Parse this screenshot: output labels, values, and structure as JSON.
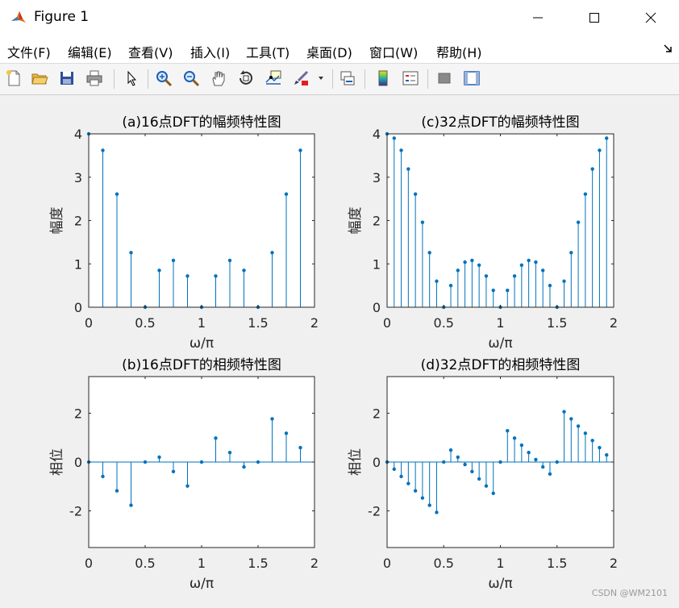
{
  "window": {
    "title": "Figure 1",
    "minimize_icon": "minimize-icon",
    "maximize_icon": "maximize-icon",
    "close_icon": "close-icon"
  },
  "menu": {
    "items": [
      {
        "label": "文件(F)"
      },
      {
        "label": "编辑(E)"
      },
      {
        "label": "查看(V)"
      },
      {
        "label": "插入(I)"
      },
      {
        "label": "工具(T)"
      },
      {
        "label": "桌面(D)"
      },
      {
        "label": "窗口(W)"
      },
      {
        "label": "帮助(H)"
      }
    ]
  },
  "toolbar": {
    "icons": [
      "new-figure-icon",
      "open-file-icon",
      "save-icon",
      "print-icon",
      "pointer-icon",
      "zoom-in-icon",
      "zoom-out-icon",
      "pan-icon",
      "rotate-3d-icon",
      "data-cursor-icon",
      "brush-icon",
      "link-plot-icon",
      "colorbar-icon",
      "legend-icon",
      "hide-plot-tools-icon",
      "show-plot-tools-icon"
    ]
  },
  "watermark": "CSDN @WM2101",
  "colors": {
    "stem": "#0072bd",
    "axes_bg": "#ffffff",
    "axes_border": "#262626"
  },
  "chart_data": [
    {
      "type": "stem",
      "title": "(a)16点DFT的幅频特性图",
      "xlabel": "ω/π",
      "ylabel": "幅度",
      "xlim": [
        0,
        2
      ],
      "ylim": [
        0,
        4
      ],
      "xticks": [
        "0",
        "0.5",
        "1",
        "1.5",
        "2"
      ],
      "yticks": [
        "0",
        "1",
        "2",
        "3",
        "4"
      ],
      "x": [
        0,
        0.125,
        0.25,
        0.375,
        0.5,
        0.625,
        0.75,
        0.875,
        1,
        1.125,
        1.25,
        1.375,
        1.5,
        1.625,
        1.75,
        1.875
      ],
      "values": [
        4,
        3.62,
        2.61,
        1.26,
        0,
        0.85,
        1.08,
        0.72,
        0,
        0.72,
        1.08,
        0.85,
        0,
        1.26,
        2.61,
        3.62
      ]
    },
    {
      "type": "stem",
      "title": "(c)32点DFT的幅频特性图",
      "xlabel": "ω/π",
      "ylabel": "幅度",
      "xlim": [
        0,
        2
      ],
      "ylim": [
        0,
        4
      ],
      "xticks": [
        "0",
        "0.5",
        "1",
        "1.5",
        "2"
      ],
      "yticks": [
        "0",
        "1",
        "2",
        "3",
        "4"
      ],
      "x": [
        0,
        0.0625,
        0.125,
        0.1875,
        0.25,
        0.3125,
        0.375,
        0.4375,
        0.5,
        0.5625,
        0.625,
        0.6875,
        0.75,
        0.8125,
        0.875,
        0.9375,
        1,
        1.0625,
        1.125,
        1.1875,
        1.25,
        1.3125,
        1.375,
        1.4375,
        1.5,
        1.5625,
        1.625,
        1.6875,
        1.75,
        1.8125,
        1.875,
        1.9375
      ],
      "values": [
        4,
        3.9,
        3.62,
        3.19,
        2.61,
        1.96,
        1.26,
        0.6,
        0,
        0.5,
        0.85,
        1.04,
        1.08,
        0.97,
        0.72,
        0.39,
        0,
        0.39,
        0.72,
        0.97,
        1.08,
        1.04,
        0.85,
        0.5,
        0,
        0.6,
        1.26,
        1.96,
        2.61,
        3.19,
        3.62,
        3.9
      ]
    },
    {
      "type": "stem",
      "title": "(b)16点DFT的相频特性图",
      "xlabel": "ω/π",
      "ylabel": "相位",
      "xlim": [
        0,
        2
      ],
      "ylim": [
        -3.5,
        3.5
      ],
      "xticks": [
        "0",
        "0.5",
        "1",
        "1.5",
        "2"
      ],
      "yticks": [
        "-2",
        "0",
        "2"
      ],
      "x": [
        0,
        0.125,
        0.25,
        0.375,
        0.5,
        0.625,
        0.75,
        0.875,
        1,
        1.125,
        1.25,
        1.375,
        1.5,
        1.625,
        1.75,
        1.875
      ],
      "values": [
        0,
        -0.59,
        -1.18,
        -1.77,
        0,
        0.2,
        -0.39,
        -0.98,
        0,
        0.98,
        0.39,
        -0.2,
        0,
        1.77,
        1.18,
        0.59
      ]
    },
    {
      "type": "stem",
      "title": "(d)32点DFT的相频特性图",
      "xlabel": "ω/π",
      "ylabel": "相位",
      "xlim": [
        0,
        2
      ],
      "ylim": [
        -3.5,
        3.5
      ],
      "xticks": [
        "0",
        "0.5",
        "1",
        "1.5",
        "2"
      ],
      "yticks": [
        "-2",
        "0",
        "2"
      ],
      "x": [
        0,
        0.0625,
        0.125,
        0.1875,
        0.25,
        0.3125,
        0.375,
        0.4375,
        0.5,
        0.5625,
        0.625,
        0.6875,
        0.75,
        0.8125,
        0.875,
        0.9375,
        1,
        1.0625,
        1.125,
        1.1875,
        1.25,
        1.3125,
        1.375,
        1.4375,
        1.5,
        1.5625,
        1.625,
        1.6875,
        1.75,
        1.8125,
        1.875,
        1.9375
      ],
      "values": [
        0,
        -0.29,
        -0.59,
        -0.88,
        -1.18,
        -1.47,
        -1.77,
        -2.06,
        0,
        0.49,
        0.2,
        -0.1,
        -0.39,
        -0.69,
        -0.98,
        -1.28,
        0,
        1.28,
        0.98,
        0.69,
        0.39,
        0.1,
        -0.2,
        -0.49,
        0,
        2.06,
        1.77,
        1.47,
        1.18,
        0.88,
        0.59,
        0.29
      ]
    }
  ]
}
